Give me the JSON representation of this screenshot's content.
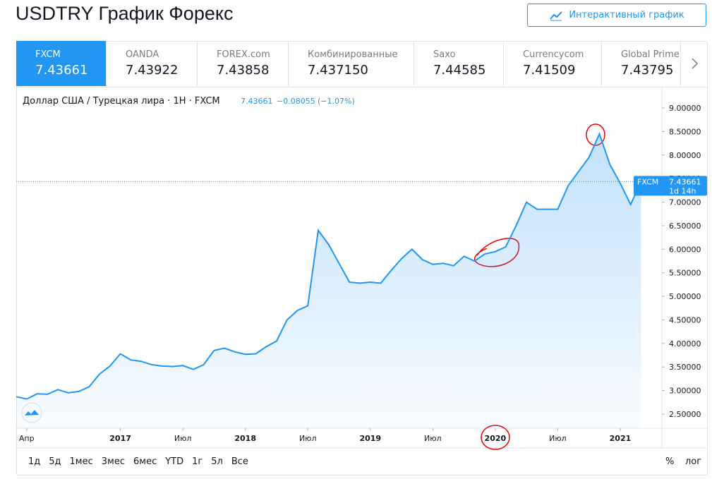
{
  "header": {
    "title": "USDTRY График Форекс",
    "button": "Интерактивный график"
  },
  "sources": [
    {
      "name": "FXCM",
      "price": "7.43661"
    },
    {
      "name": "OANDA",
      "price": "7.43922"
    },
    {
      "name": "FOREX.com",
      "price": "7.43858"
    },
    {
      "name": "Комбинированные",
      "price": "7.437150"
    },
    {
      "name": "Saxo",
      "price": "7.44585"
    },
    {
      "name": "Currencycom",
      "price": "7.41509"
    },
    {
      "name": "Global Prime",
      "price": "7.43795"
    }
  ],
  "chart_data": {
    "type": "area",
    "description": "Доллар США / Турецкая лира · 1H · FXCM",
    "change": "−0.08055",
    "change_percent": "(−1.07%)",
    "countdown": "1d 14h",
    "x": [
      "2016-03",
      "2016-04",
      "2016-05",
      "2016-06",
      "2016-07",
      "2016-08",
      "2016-09",
      "2016-10",
      "2016-11",
      "2016-12",
      "2017-01",
      "2017-02",
      "2017-03",
      "2017-04",
      "2017-05",
      "2017-06",
      "2017-07",
      "2017-08",
      "2017-09",
      "2017-10",
      "2017-11",
      "2017-12",
      "2018-01",
      "2018-02",
      "2018-03",
      "2018-04",
      "2018-05",
      "2018-06",
      "2018-07",
      "2018-08",
      "2018-09",
      "2018-10",
      "2018-11",
      "2018-12",
      "2019-01",
      "2019-02",
      "2019-03",
      "2019-04",
      "2019-05",
      "2019-06",
      "2019-07",
      "2019-08",
      "2019-09",
      "2019-10",
      "2019-11",
      "2019-12",
      "2020-01",
      "2020-02",
      "2020-03",
      "2020-04",
      "2020-05",
      "2020-06",
      "2020-07",
      "2020-08",
      "2020-09",
      "2020-10",
      "2020-11",
      "2020-12",
      "2021-01",
      "2021-02",
      "2021-03"
    ],
    "series": [
      {
        "name": "FXCM",
        "color": "#2196f3",
        "values": [
          2.87,
          2.82,
          2.93,
          2.92,
          3.02,
          2.95,
          2.98,
          3.08,
          3.35,
          3.52,
          3.78,
          3.65,
          3.62,
          3.55,
          3.52,
          3.51,
          3.53,
          3.45,
          3.55,
          3.85,
          3.9,
          3.82,
          3.77,
          3.78,
          3.93,
          4.05,
          4.5,
          4.7,
          4.8,
          6.4,
          6.1,
          5.7,
          5.3,
          5.28,
          5.3,
          5.28,
          5.55,
          5.8,
          6.0,
          5.78,
          5.68,
          5.7,
          5.65,
          5.85,
          5.75,
          5.9,
          5.95,
          6.05,
          6.5,
          7.0,
          6.85,
          6.85,
          6.85,
          7.35,
          7.65,
          7.95,
          8.45,
          7.8,
          7.4,
          6.95,
          7.43661
        ]
      }
    ],
    "xlim": [
      "2016-03",
      "2021-05"
    ],
    "xticks": [
      {
        "value": "2016-04",
        "label": "Апр"
      },
      {
        "value": "2017-01",
        "label": "2017"
      },
      {
        "value": "2017-07",
        "label": "Июл"
      },
      {
        "value": "2018-01",
        "label": "2018"
      },
      {
        "value": "2018-07",
        "label": "Июл"
      },
      {
        "value": "2019-01",
        "label": "2019"
      },
      {
        "value": "2019-07",
        "label": "Июл"
      },
      {
        "value": "2020-01",
        "label": "2020"
      },
      {
        "value": "2020-07",
        "label": "Июл"
      },
      {
        "value": "2021-01",
        "label": "2021"
      }
    ],
    "ylim": [
      2.2,
      9.39
    ],
    "yticks": [
      {
        "value": 2.5,
        "label": "2.50000"
      },
      {
        "value": 3,
        "label": "3.00000"
      },
      {
        "value": 3.5,
        "label": "3.50000"
      },
      {
        "value": 4,
        "label": "4.00000"
      },
      {
        "value": 4.5,
        "label": "4.50000"
      },
      {
        "value": 5,
        "label": "5.00000"
      },
      {
        "value": 5.5,
        "label": "5.50000"
      },
      {
        "value": 6,
        "label": "6.00000"
      },
      {
        "value": 6.5,
        "label": "6.50000"
      },
      {
        "value": 7,
        "label": "7.00000"
      },
      {
        "value": 7.5,
        "label": "7.50000"
      },
      {
        "value": 8,
        "label": "8.00000"
      },
      {
        "value": 8.5,
        "label": "8.50000"
      },
      {
        "value": 9,
        "label": "9.00000"
      }
    ]
  },
  "toolbar": {
    "ranges": [
      "1д",
      "5д",
      "1мес",
      "3мес",
      "6мес",
      "YTD",
      "1г",
      "5л",
      "Все"
    ],
    "percent": "%",
    "log": "лог"
  }
}
